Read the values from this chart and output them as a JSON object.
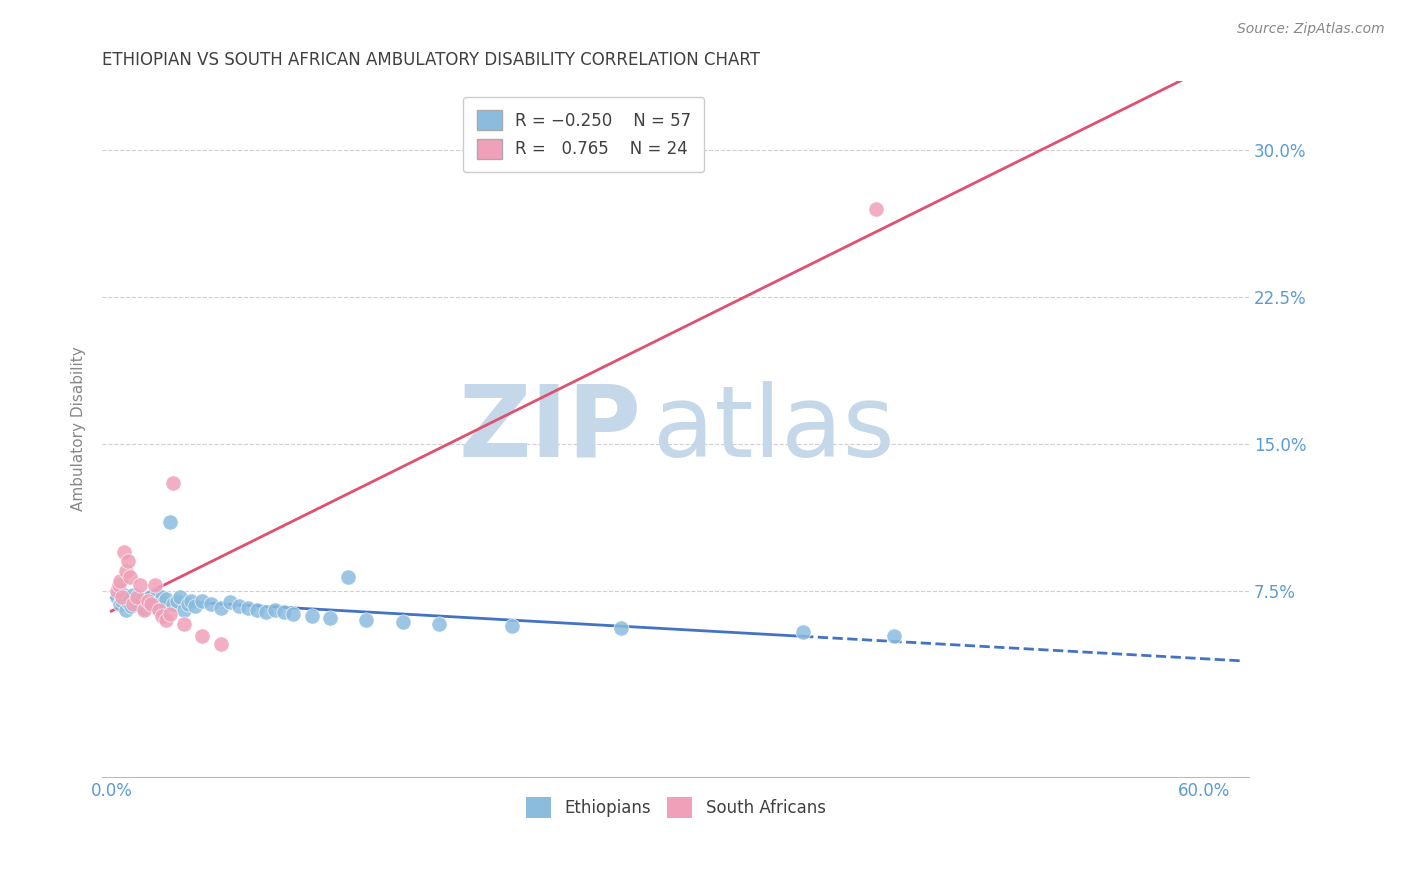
{
  "title": "ETHIOPIAN VS SOUTH AFRICAN AMBULATORY DISABILITY CORRELATION CHART",
  "source": "Source: ZipAtlas.com",
  "ylabel": "Ambulatory Disability",
  "xlim": [
    -0.005,
    0.625
  ],
  "ylim": [
    -0.02,
    0.335
  ],
  "xticks": [
    0.0,
    0.1,
    0.2,
    0.3,
    0.4,
    0.5,
    0.6
  ],
  "xtick_labels": [
    "0.0%",
    "",
    "",
    "",
    "",
    "",
    "60.0%"
  ],
  "yticks": [
    0.075,
    0.15,
    0.225,
    0.3
  ],
  "ytick_labels": [
    "7.5%",
    "15.0%",
    "22.5%",
    "30.0%"
  ],
  "legend_r1": "R = -0.250",
  "legend_n1": "N = 57",
  "legend_r2": "R =  0.765",
  "legend_n2": "N = 24",
  "color_ethiopian": "#8bbcde",
  "color_sa": "#f0a0b8",
  "color_line_ethiopian": "#4472c4",
  "color_line_sa": "#e05070",
  "color_tick_labels": "#5b9bd5",
  "color_title": "#404040",
  "background_color": "#ffffff",
  "watermark_zip": "ZIP",
  "watermark_atlas": "atlas",
  "watermark_color": "#c5d8ea",
  "ethiopian_x": [
    0.003,
    0.004,
    0.005,
    0.006,
    0.007,
    0.008,
    0.009,
    0.01,
    0.011,
    0.012,
    0.013,
    0.014,
    0.015,
    0.016,
    0.017,
    0.018,
    0.019,
    0.02,
    0.021,
    0.022,
    0.023,
    0.024,
    0.025,
    0.026,
    0.027,
    0.028,
    0.029,
    0.03,
    0.032,
    0.034,
    0.036,
    0.038,
    0.04,
    0.042,
    0.044,
    0.046,
    0.05,
    0.055,
    0.06,
    0.065,
    0.07,
    0.075,
    0.08,
    0.085,
    0.09,
    0.095,
    0.1,
    0.11,
    0.12,
    0.13,
    0.14,
    0.16,
    0.18,
    0.22,
    0.28,
    0.38,
    0.43
  ],
  "ethiopian_y": [
    0.072,
    0.075,
    0.068,
    0.07,
    0.073,
    0.065,
    0.069,
    0.071,
    0.067,
    0.073,
    0.07,
    0.068,
    0.072,
    0.069,
    0.071,
    0.066,
    0.07,
    0.068,
    0.072,
    0.069,
    0.067,
    0.071,
    0.073,
    0.068,
    0.07,
    0.072,
    0.069,
    0.071,
    0.11,
    0.068,
    0.07,
    0.072,
    0.065,
    0.068,
    0.07,
    0.067,
    0.07,
    0.068,
    0.066,
    0.069,
    0.067,
    0.066,
    0.065,
    0.064,
    0.065,
    0.064,
    0.063,
    0.062,
    0.061,
    0.082,
    0.06,
    0.059,
    0.058,
    0.057,
    0.056,
    0.054,
    0.052
  ],
  "sa_x": [
    0.003,
    0.004,
    0.005,
    0.006,
    0.007,
    0.008,
    0.009,
    0.01,
    0.012,
    0.014,
    0.016,
    0.018,
    0.02,
    0.022,
    0.024,
    0.026,
    0.028,
    0.03,
    0.032,
    0.034,
    0.04,
    0.05,
    0.06,
    0.42
  ],
  "sa_y": [
    0.075,
    0.078,
    0.08,
    0.072,
    0.095,
    0.085,
    0.09,
    0.082,
    0.068,
    0.072,
    0.078,
    0.065,
    0.07,
    0.068,
    0.078,
    0.065,
    0.062,
    0.06,
    0.063,
    0.13,
    0.058,
    0.052,
    0.048,
    0.27
  ],
  "eth_line_solid_end": 0.38,
  "sa_line_start": 0.0,
  "sa_line_end": 0.62
}
